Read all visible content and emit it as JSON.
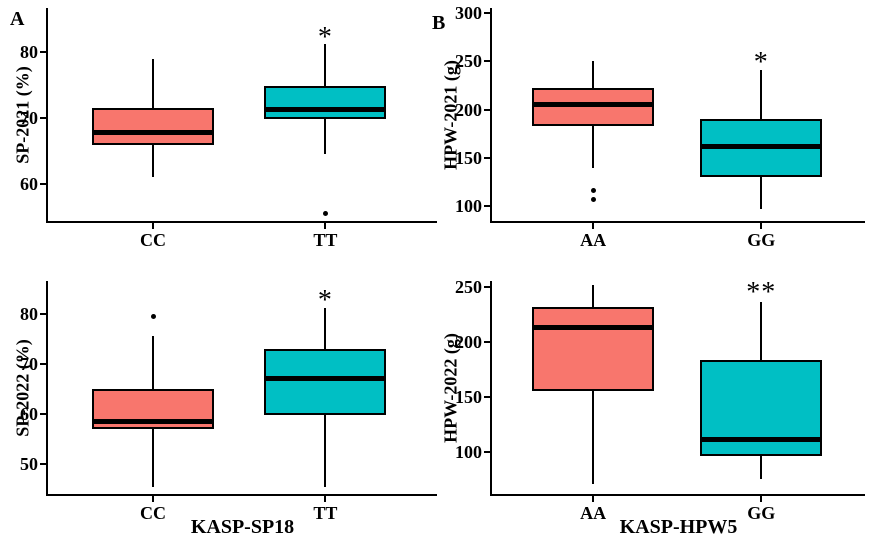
{
  "figure": {
    "background": "#ffffff",
    "line_color": "#000000",
    "box_colors": {
      "allele1": "#F8766D",
      "allele2": "#00BFC4"
    }
  },
  "chart_data": [
    {
      "type": "boxplot",
      "panel_label": "A",
      "ylabel": "SP-2021 (%)",
      "xlabel": "",
      "yticks": [
        60,
        70,
        80
      ],
      "ylim": [
        54.3,
        86.7
      ],
      "categories": [
        "CC",
        "TT"
      ],
      "series": [
        {
          "category": "CC",
          "color": "#F8766D",
          "whisker_low": 61,
          "q1": 65.8,
          "median": 67.8,
          "q3": 71.5,
          "whisker_high": 79,
          "outliers": []
        },
        {
          "category": "TT",
          "color": "#00BFC4",
          "whisker_low": 64.5,
          "q1": 69.8,
          "median": 71.3,
          "q3": 74.8,
          "whisker_high": 81.3,
          "outliers": [
            55.5
          ],
          "sig": "*",
          "sig_y": 82.8
        }
      ]
    },
    {
      "type": "boxplot",
      "panel_label": "B",
      "ylabel": "HPW-2021 (g)",
      "xlabel": "",
      "yticks": [
        100,
        150,
        200,
        250,
        300
      ],
      "ylim": [
        85,
        305
      ],
      "categories": [
        "AA",
        "GG"
      ],
      "series": [
        {
          "category": "AA",
          "color": "#F8766D",
          "whisker_low": 140,
          "q1": 183,
          "median": 206,
          "q3": 222,
          "whisker_high": 250,
          "outliers": [
            117,
            107
          ]
        },
        {
          "category": "GG",
          "color": "#00BFC4",
          "whisker_low": 97,
          "q1": 130,
          "median": 162,
          "q3": 190,
          "whisker_high": 241,
          "outliers": [],
          "sig": "*",
          "sig_y": 252
        }
      ]
    },
    {
      "type": "boxplot",
      "panel_label": "",
      "ylabel": "SP-2022 (%)",
      "xlabel": "KASP-SP18",
      "yticks": [
        50,
        60,
        70,
        80
      ],
      "ylim": [
        44,
        86.6
      ],
      "categories": [
        "CC",
        "TT"
      ],
      "series": [
        {
          "category": "CC",
          "color": "#F8766D",
          "whisker_low": 45.5,
          "q1": 57,
          "median": 58.6,
          "q3": 65,
          "whisker_high": 75.6,
          "outliers": [
            79.6
          ]
        },
        {
          "category": "TT",
          "color": "#00BFC4",
          "whisker_low": 45.5,
          "q1": 59.8,
          "median": 67.2,
          "q3": 73,
          "whisker_high": 81.2,
          "outliers": [],
          "sig": "*",
          "sig_y": 83.5
        }
      ]
    },
    {
      "type": "boxplot",
      "panel_label": "",
      "ylabel": "HPW-2022 (g)",
      "xlabel": "KASP-HPW5",
      "yticks": [
        100,
        150,
        200,
        250
      ],
      "ylim": [
        61.6,
        255.5
      ],
      "categories": [
        "AA",
        "GG"
      ],
      "series": [
        {
          "category": "AA",
          "color": "#F8766D",
          "whisker_low": 71,
          "q1": 155,
          "median": 214,
          "q3": 232,
          "whisker_high": 252,
          "outliers": []
        },
        {
          "category": "GG",
          "color": "#00BFC4",
          "whisker_low": 75,
          "q1": 96,
          "median": 112,
          "q3": 184,
          "whisker_high": 236,
          "outliers": [],
          "sig": "**",
          "sig_y": 248
        }
      ]
    }
  ]
}
